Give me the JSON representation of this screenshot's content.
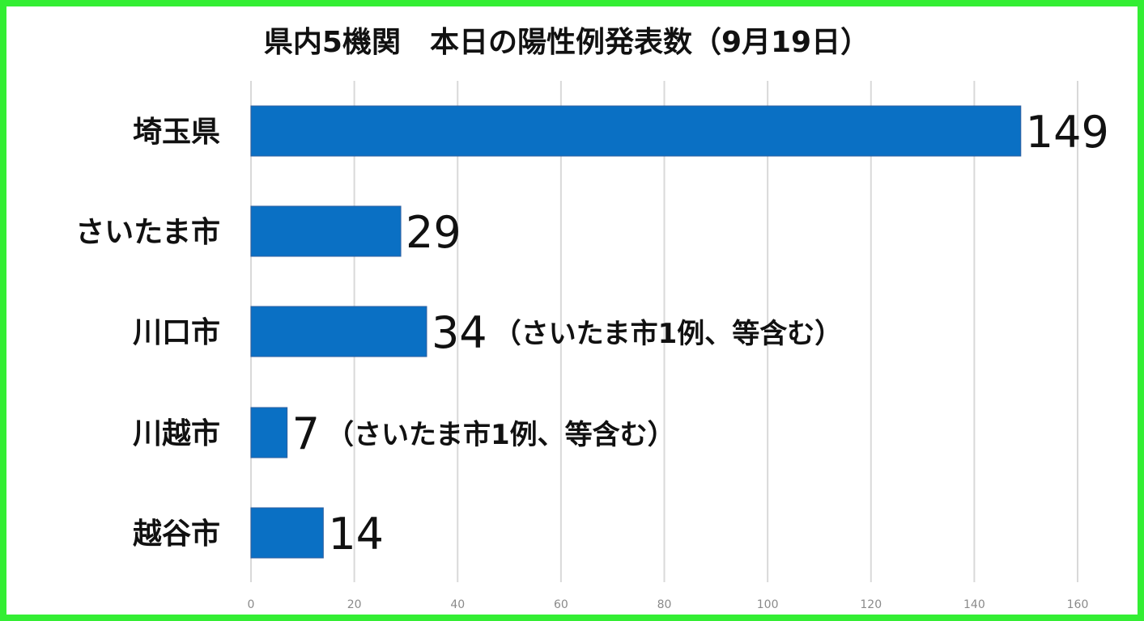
{
  "colors": {
    "border": "#33ee33",
    "bar": "#0a70c4",
    "grid": "#d9d9d9"
  },
  "chart_data": {
    "type": "bar",
    "orientation": "horizontal",
    "title": "県内5機関　本日の陽性例発表数（9月19日）",
    "categories": [
      "埼玉県",
      "さいたま市",
      "川口市",
      "川越市",
      "越谷市"
    ],
    "values": [
      149,
      29,
      34,
      7,
      14
    ],
    "value_labels": [
      "149",
      "29",
      "34",
      "7",
      "14"
    ],
    "notes": [
      "",
      "",
      "（さいたま市1例、等含む）",
      "（さいたま市1例、等含む）",
      ""
    ],
    "xlim": [
      0,
      160
    ],
    "xticks": [
      0,
      20,
      40,
      60,
      80,
      100,
      120,
      140,
      160
    ],
    "xlabel": "",
    "ylabel": "",
    "grid": "vertical",
    "legend": "none"
  }
}
